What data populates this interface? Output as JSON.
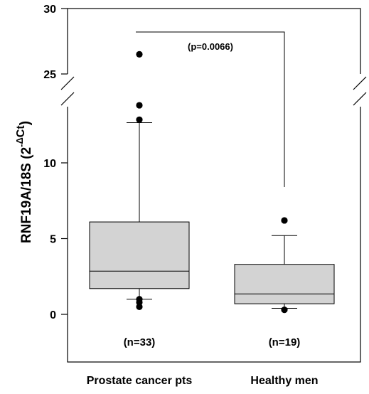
{
  "chart_data": {
    "type": "box",
    "ylabel_main": "RNF19A/18S (2",
    "ylabel_sup_delta": "Δ",
    "ylabel_sup_minus": "-",
    "ylabel_sup_ct": "Ct",
    "ylabel_end": ")",
    "categories": [
      "Prostate cancer pts",
      "Healthy men"
    ],
    "n_labels": [
      "(n=33)",
      "(n=19)"
    ],
    "axis_break": {
      "lower_max": 13.5,
      "upper_min": 24
    },
    "ylim": [
      -3,
      30
    ],
    "yticks": [
      0,
      5,
      10,
      25,
      30
    ],
    "boxes": [
      {
        "category": "Prostate cancer pts",
        "whisker_low": 1.0,
        "q1": 1.7,
        "median": 2.85,
        "q3": 6.1,
        "whisker_high": 12.65,
        "outliers": [
          0.5,
          0.8,
          1.0,
          12.85,
          13.8,
          26.5
        ]
      },
      {
        "category": "Healthy men",
        "whisker_low": 0.4,
        "q1": 0.7,
        "median": 1.35,
        "q3": 3.3,
        "whisker_high": 5.2,
        "outliers": [
          0.3,
          6.2
        ]
      }
    ],
    "annotation": {
      "text": "(p=0.0066)"
    },
    "colors": {
      "box_fill": "#d3d3d3",
      "line": "#000000"
    }
  }
}
